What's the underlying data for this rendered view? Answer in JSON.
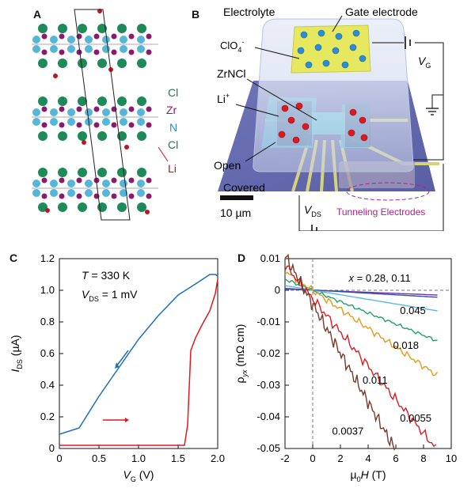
{
  "panels": {
    "A": {
      "letter": "A",
      "labels": [
        {
          "text": "Cl",
          "color": "#1a7a4c"
        },
        {
          "text": "Zr",
          "color": "#8b1a6b"
        },
        {
          "text": "N",
          "color": "#2a8fbf"
        },
        {
          "text": "Cl",
          "color": "#1a7a4c"
        },
        {
          "text": "Li",
          "color": "#c0141e"
        }
      ]
    },
    "B": {
      "letter": "B",
      "electrolyte": "Electrolyte",
      "gate_electrode": "Gate electrode",
      "clo4": "ClO",
      "clo4_sub": "4",
      "clo4_sup": "-",
      "zrncl": "ZrNCl",
      "li": "Li",
      "li_sup": "+",
      "open": "Open",
      "covered": "Covered",
      "scalebar": "10 µm",
      "vg": "V",
      "vg_sub": "G",
      "vds": "V",
      "vds_sub": "DS",
      "tunneling": "Tunneling Electrodes"
    },
    "C": {
      "letter": "C"
    },
    "D": {
      "letter": "D"
    }
  },
  "chart_data": [
    {
      "type": "line",
      "panel": "C",
      "xlabel": "V",
      "xlabel_sub": "G",
      "xlabel_unit": " (V)",
      "ylabel": "I",
      "ylabel_sub": "DS",
      "ylabel_unit": " (µA)",
      "xlim": [
        0,
        2.0
      ],
      "ylim": [
        0,
        1.2
      ],
      "xticks": [
        "0",
        "0.5",
        "1.0",
        "1.5",
        "2.0"
      ],
      "yticks": [
        "0",
        "0.2",
        "0.4",
        "0.6",
        "0.8",
        "1.0",
        "1.2"
      ],
      "annotations": {
        "T_label": "T",
        "T_value": " = 330 K",
        "V_label": "V",
        "V_sub": "DS",
        "V_value": " = 1 mV"
      },
      "series": [
        {
          "color": "#1f6fb8",
          "x": [
            0,
            0.25,
            0.5,
            0.75,
            1.0,
            1.25,
            1.5,
            1.75,
            1.9,
            1.97,
            2.0
          ],
          "y": [
            0.09,
            0.13,
            0.33,
            0.51,
            0.69,
            0.84,
            0.97,
            1.05,
            1.1,
            1.1,
            1.09
          ]
        },
        {
          "color": "#e0191e",
          "x": [
            0,
            0.5,
            1.0,
            1.5,
            1.58,
            1.62,
            1.66,
            1.72,
            1.8,
            1.9,
            1.97,
            2.0
          ],
          "y": [
            0.02,
            0.02,
            0.02,
            0.02,
            0.02,
            0.15,
            0.62,
            0.7,
            0.78,
            0.87,
            0.98,
            1.07
          ]
        }
      ]
    },
    {
      "type": "line",
      "panel": "D",
      "xlabel": "µ",
      "xlabel_sub": "0",
      "xlabel_h": "H",
      "xlabel_unit": " (T)",
      "ylabel": "ρ",
      "ylabel_sub": "yx",
      "ylabel_unit": " (mΩ cm)",
      "xlim": [
        -2,
        10
      ],
      "ylim": [
        -0.05,
        0.01
      ],
      "xticks": [
        "-2",
        "0",
        "2",
        "4",
        "6",
        "8",
        "10"
      ],
      "yticks": [
        "0.01",
        "0",
        "-0.01",
        "-0.02",
        "-0.03",
        "-0.04",
        "-0.05"
      ],
      "series_header": "x = 0.28, 0.11",
      "series_header_x": "x",
      "series_header_rest": " = 0.28, 0.11",
      "series": [
        {
          "name": "0.28",
          "color": "#7030a0",
          "x": [
            -2,
            9
          ],
          "y": [
            0.0004,
            -0.0015
          ]
        },
        {
          "name": "0.11",
          "color": "#2f4fb0",
          "x": [
            -2,
            9
          ],
          "y": [
            0.0006,
            -0.0022
          ]
        },
        {
          "name": "0.045",
          "color": "#5ab9e0",
          "x": [
            -2,
            9
          ],
          "y": [
            0.0015,
            -0.0065
          ]
        },
        {
          "name": "0.018",
          "color": "#1fa36a",
          "x": [
            -2,
            9
          ],
          "y": [
            0.0035,
            -0.016
          ]
        },
        {
          "name": "0.011",
          "color": "#e89a1a",
          "x": [
            -2,
            9
          ],
          "y": [
            0.006,
            -0.027
          ]
        },
        {
          "name": "0.0055",
          "color": "#e0191e",
          "x": [
            -2,
            8.9
          ],
          "y": [
            0.008,
            -0.05
          ]
        },
        {
          "name": "0.0037",
          "color": "#7a3a28",
          "x": [
            -2,
            5.9
          ],
          "y": [
            0.011,
            -0.05
          ]
        }
      ],
      "series_labels": [
        "0.045",
        "0.018",
        "0.011",
        "0.0055",
        "0.0037"
      ]
    }
  ]
}
